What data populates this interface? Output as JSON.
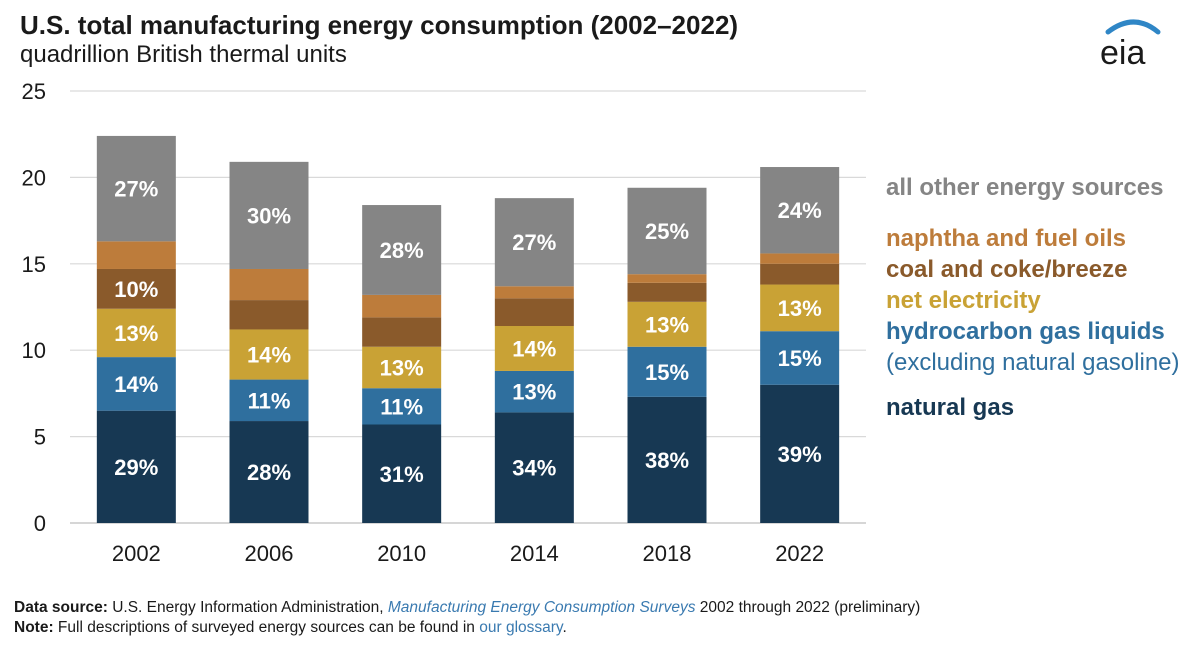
{
  "header": {
    "title": "U.S. total manufacturing energy consumption (2002–2022)",
    "subtitle": "quadrillion British thermal units",
    "logo_text": "eia"
  },
  "chart_data": {
    "type": "bar",
    "stacked": true,
    "categories": [
      "2002",
      "2006",
      "2010",
      "2014",
      "2018",
      "2022"
    ],
    "ylim": [
      0,
      25
    ],
    "yticks": [
      "0",
      "5",
      "10",
      "15",
      "20",
      "25"
    ],
    "grid": true,
    "legend_position": "right",
    "series": [
      {
        "name": "natural gas",
        "color": "#173853",
        "values": [
          6.5,
          5.9,
          5.7,
          6.4,
          7.3,
          8.0
        ],
        "labels": [
          "29%",
          "28%",
          "31%",
          "34%",
          "38%",
          "39%"
        ]
      },
      {
        "name": "hydrocarbon gas liquids (excluding natural gasoline)",
        "color": "#2f6f9e",
        "values": [
          3.1,
          2.4,
          2.1,
          2.4,
          2.9,
          3.1
        ],
        "labels": [
          "14%",
          "11%",
          "11%",
          "13%",
          "15%",
          "15%"
        ]
      },
      {
        "name": "net electricity",
        "color": "#c9a235",
        "values": [
          2.8,
          2.9,
          2.4,
          2.6,
          2.6,
          2.7
        ],
        "labels": [
          "13%",
          "14%",
          "13%",
          "14%",
          "13%",
          "13%"
        ]
      },
      {
        "name": "coal and coke/breeze",
        "color": "#8a5a2b",
        "values": [
          2.3,
          1.7,
          1.7,
          1.6,
          1.1,
          1.2
        ],
        "labels": [
          "10%",
          "",
          "",
          "",
          "",
          ""
        ]
      },
      {
        "name": "naphtha and fuel oils",
        "color": "#bd7c3b",
        "values": [
          1.6,
          1.8,
          1.3,
          0.7,
          0.5,
          0.6
        ],
        "labels": [
          "",
          "",
          "",
          "",
          "",
          ""
        ]
      },
      {
        "name": "all other energy sources",
        "color": "#858585",
        "values": [
          6.1,
          6.2,
          5.2,
          5.1,
          5.0,
          5.0
        ],
        "labels": [
          "27%",
          "30%",
          "28%",
          "27%",
          "25%",
          "24%"
        ]
      }
    ]
  },
  "legend": {
    "all_other": "all other energy sources",
    "all_other_color": "#858585",
    "naphtha": "naphtha and fuel oils",
    "naphtha_color": "#bd7c3b",
    "coal": "coal and coke/breeze",
    "coal_color": "#8a5a2b",
    "electricity": "net electricity",
    "electricity_color": "#c9a235",
    "hgl_bold": "hydrocarbon gas liquids",
    "hgl_rest": " (excluding natural gasoline)",
    "hgl_color": "#2f6f9e",
    "natural_gas": "natural gas",
    "natural_gas_color": "#173853"
  },
  "footer": {
    "source_label": "Data source:",
    "source_text": " U.S. Energy Information Administration, ",
    "source_link": "Manufacturing Energy Consumption Surveys",
    "source_tail": " 2002 through 2022 (preliminary)",
    "note_label": "Note:",
    "note_text": " Full descriptions of surveyed energy sources can be found in ",
    "note_link": "our glossary",
    "note_tail": "."
  }
}
